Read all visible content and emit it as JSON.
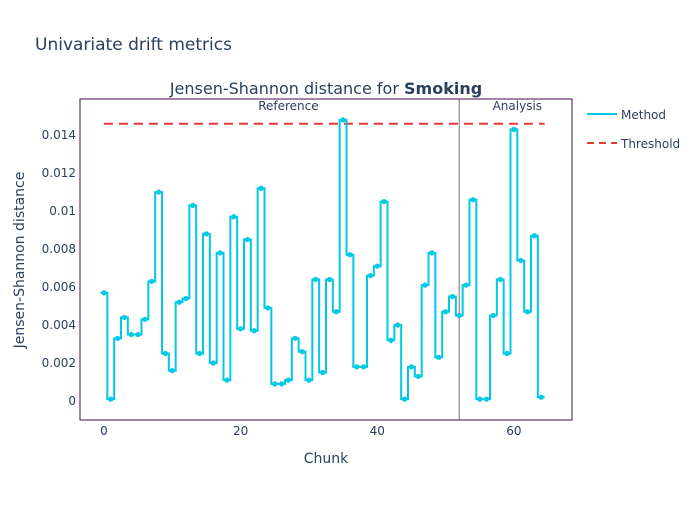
{
  "figure": {
    "title": "Univariate drift metrics"
  },
  "chart_data": {
    "type": "line",
    "title_prefix": "Jensen-Shannon distance for ",
    "title_bold": "Smoking",
    "xlabel": "Chunk",
    "ylabel": "Jensen-Shannon distance",
    "xlim": [
      -3.5,
      68.5
    ],
    "ylim": [
      -0.001,
      0.0159
    ],
    "xticks": [
      {
        "value": 0,
        "label": "0"
      },
      {
        "value": 20,
        "label": "20"
      },
      {
        "value": 40,
        "label": "40"
      },
      {
        "value": 60,
        "label": "60"
      }
    ],
    "yticks": [
      {
        "value": 0,
        "label": "0"
      },
      {
        "value": 0.002,
        "label": "0.002"
      },
      {
        "value": 0.004,
        "label": "0.004"
      },
      {
        "value": 0.006,
        "label": "0.006"
      },
      {
        "value": 0.008,
        "label": "0.008"
      },
      {
        "value": 0.01,
        "label": "0.01"
      },
      {
        "value": 0.012,
        "label": "0.012"
      },
      {
        "value": 0.014,
        "label": "0.014"
      }
    ],
    "threshold": 0.0146,
    "threshold_range": [
      0,
      64.5
    ],
    "period_split": 52,
    "period_labels": [
      {
        "text": "Reference",
        "x": 27
      },
      {
        "text": "Analysis",
        "x": 60.5
      }
    ],
    "legend_position": "top-right",
    "series": [
      {
        "name": "Method",
        "color": "#00c8e5",
        "x": [
          0,
          1,
          2,
          3,
          4,
          5,
          6,
          7,
          8,
          9,
          10,
          11,
          12,
          13,
          14,
          15,
          16,
          17,
          18,
          19,
          20,
          21,
          22,
          23,
          24,
          25,
          26,
          27,
          28,
          29,
          30,
          31,
          32,
          33,
          34,
          35,
          36,
          37,
          38,
          39,
          40,
          41,
          42,
          43,
          44,
          45,
          46,
          47,
          48,
          49,
          50,
          51,
          52,
          53,
          54,
          55,
          56,
          57,
          58,
          59,
          60,
          61,
          62,
          63,
          64
        ],
        "values": [
          0.0057,
          0.0001,
          0.0033,
          0.0044,
          0.0035,
          0.0035,
          0.0043,
          0.0063,
          0.011,
          0.0025,
          0.0016,
          0.0052,
          0.0054,
          0.0103,
          0.0025,
          0.0088,
          0.002,
          0.0078,
          0.0011,
          0.0097,
          0.0038,
          0.0085,
          0.0037,
          0.0112,
          0.0049,
          0.0009,
          0.0009,
          0.0011,
          0.0033,
          0.0026,
          0.0011,
          0.0064,
          0.0015,
          0.0064,
          0.0047,
          0.0148,
          0.0077,
          0.0018,
          0.0018,
          0.0066,
          0.0071,
          0.0105,
          0.0032,
          0.004,
          0.0001,
          0.0018,
          0.0013,
          0.0061,
          0.0078,
          0.0023,
          0.0047,
          0.0055,
          0.0045,
          0.0061,
          0.0106,
          0.0001,
          0.0001,
          0.0045,
          0.0064,
          0.0025,
          0.0143,
          0.0074,
          0.0047,
          0.0087,
          0.0002
        ]
      },
      {
        "name": "Threshold",
        "color": "#e53935"
      }
    ]
  }
}
